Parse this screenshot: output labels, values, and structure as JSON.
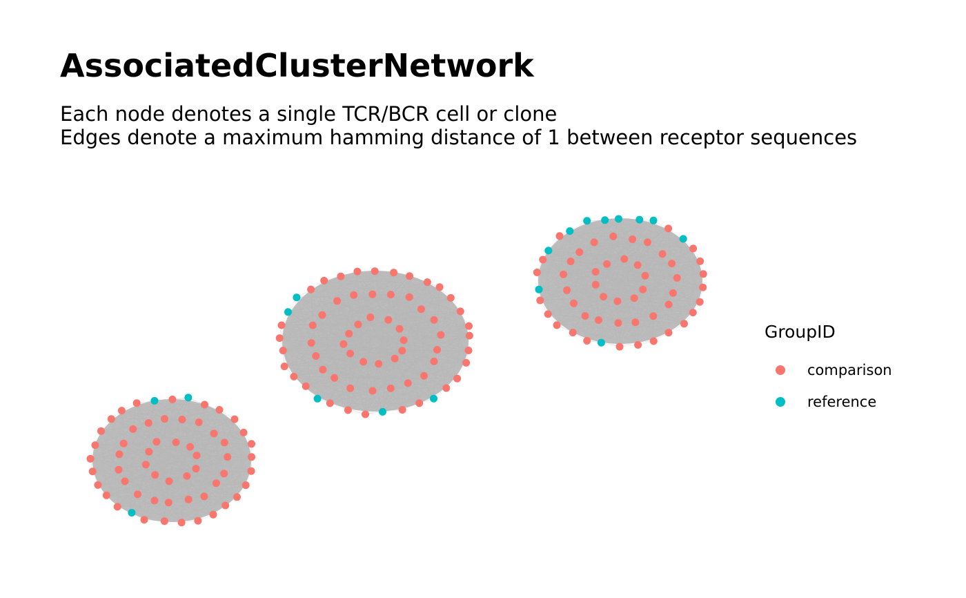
{
  "title": "AssociatedClusterNetwork",
  "subtitle_lines": [
    "Each node denotes a single TCR/BCR cell or clone",
    "Edges denote a maximum hamming distance of 1 between receptor sequences"
  ],
  "colors": {
    "comparison": "#F8766D",
    "reference": "#00BFC4",
    "edge": "#BEBEBE"
  },
  "legend": {
    "title": "GroupID",
    "items": [
      {
        "label": "comparison",
        "color": "#F8766D"
      },
      {
        "label": "reference",
        "color": "#00BFC4"
      }
    ]
  },
  "chart_data": {
    "type": "network",
    "color_by": "GroupID",
    "clusters": [
      {
        "node_count": 58,
        "reference_count": 3,
        "comparison_count": 55
      },
      {
        "node_count": 66,
        "reference_count": 5,
        "comparison_count": 61
      },
      {
        "node_count": 59,
        "reference_count": 10,
        "comparison_count": 49
      }
    ]
  }
}
